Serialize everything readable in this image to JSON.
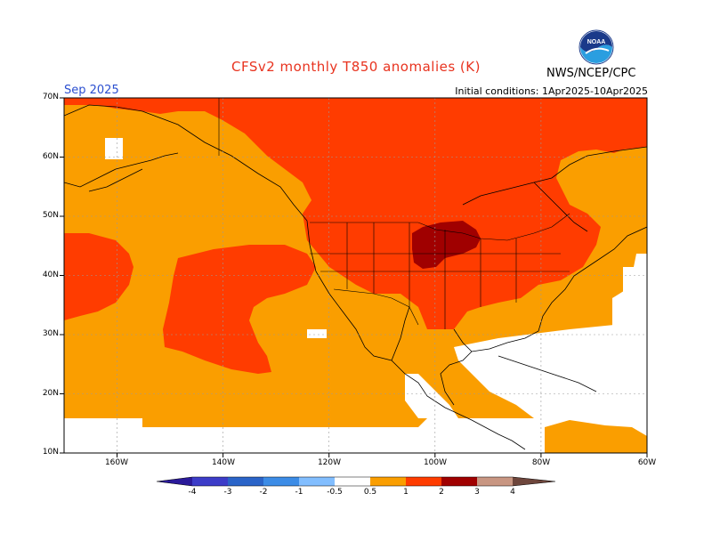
{
  "title": "CFSv2 monthly T850 anomalies (K)",
  "month": "Sep 2025",
  "initial_conditions": "Initial conditions: 1Apr2025-10Apr2025",
  "agency": "NWS/NCEP/CPC",
  "logo_text": "NOAA",
  "lat_labels": [
    "70N",
    "60N",
    "50N",
    "40N",
    "30N",
    "20N",
    "10N"
  ],
  "lon_labels": [
    "160W",
    "140W",
    "120W",
    "100W",
    "80W",
    "60W"
  ],
  "colorbar": {
    "labels": [
      "-4",
      "-3",
      "-2",
      "-1",
      "-0.5",
      "0.5",
      "1",
      "2",
      "3",
      "4"
    ],
    "colors": [
      "#2a1a9a",
      "#3c3cc8",
      "#2a64c8",
      "#3c8ce6",
      "#82beff",
      "#ffffff",
      "#fa9e00",
      "#ff3c00",
      "#a00000",
      "#c89682",
      "#6e463c"
    ]
  },
  "anomaly_colors": {
    "0.5-1": "#fa9e00",
    "1-2": "#ff3c00",
    "2-3": "#a00000"
  },
  "map": {
    "region": "North America and eastern Pacific",
    "lon_range": [
      -170,
      -60
    ],
    "lat_range": [
      10,
      70
    ]
  }
}
